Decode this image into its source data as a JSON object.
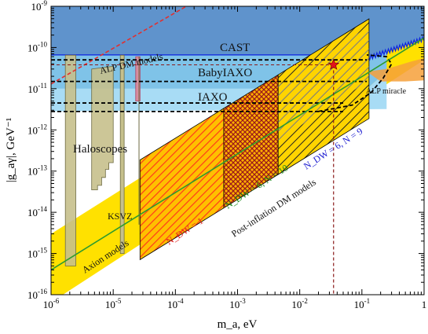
{
  "chart_data": {
    "type": "area",
    "xlabel": "m_a, eV",
    "ylabel": "|g_aγ|, GeV⁻¹",
    "xscale": "log",
    "yscale": "log",
    "xlim": [
      1e-06,
      1
    ],
    "ylim": [
      1e-16,
      1e-09
    ],
    "x_ticks": [
      {
        "value": 1e-06,
        "base": "10",
        "exp": "-6"
      },
      {
        "value": 1e-05,
        "base": "10",
        "exp": "-5"
      },
      {
        "value": 0.0001,
        "base": "10",
        "exp": "-4"
      },
      {
        "value": 0.001,
        "base": "10",
        "exp": "-3"
      },
      {
        "value": 0.01,
        "base": "10",
        "exp": "-2"
      },
      {
        "value": 0.1,
        "base": "10",
        "exp": "-1"
      },
      {
        "value": 1,
        "base": "1",
        "exp": ""
      }
    ],
    "y_ticks": [
      {
        "value": 1e-16,
        "base": "10",
        "exp": "-16"
      },
      {
        "value": 1e-15,
        "base": "10",
        "exp": "-15"
      },
      {
        "value": 1e-14,
        "base": "10",
        "exp": "-14"
      },
      {
        "value": 1e-13,
        "base": "10",
        "exp": "-13"
      },
      {
        "value": 1e-12,
        "base": "10",
        "exp": "-12"
      },
      {
        "value": 1e-11,
        "base": "10",
        "exp": "-11"
      },
      {
        "value": 1e-10,
        "base": "10",
        "exp": "-10"
      },
      {
        "value": 1e-09,
        "base": "10",
        "exp": "-9"
      }
    ],
    "regions": [
      {
        "name": "CAST",
        "mass_range": [
          1e-06,
          1
        ],
        "coupling_upper_limit": 6.6e-11,
        "color": "#5f93cc"
      },
      {
        "name": "BabyIAXO",
        "mass_range": [
          1e-06,
          0.25
        ],
        "coupling_reach": 1.5e-11,
        "color": "#7fc3e8"
      },
      {
        "name": "IAXO",
        "mass_range": [
          1e-06,
          0.25
        ],
        "coupling_reach": 4e-12,
        "color": "#a8dcf5"
      },
      {
        "name": "Haloscopes",
        "mass_range": [
          2e-06,
          2.6e-05
        ],
        "color": "#c6c08c"
      },
      {
        "name": "Axion models",
        "color": "#ffe100"
      },
      {
        "name": "N_DW = 1",
        "mass_range": [
          2.7e-05,
          0.0006
        ],
        "color": "#ff6a00"
      },
      {
        "name": "N_DW = 6, N = 10",
        "mass_range": [
          0.0006,
          0.0045
        ],
        "color": "#aa1a2a"
      },
      {
        "name": "N_DW = 6, N = 9",
        "mass_range": [
          0.0045,
          0.13
        ],
        "color": "#222222"
      }
    ],
    "lines": [
      {
        "name": "KSVZ",
        "points": [
          [
            1e-06,
            4e-16
          ],
          [
            1,
            1.7e-10
          ]
        ],
        "color": "#2e9b2e"
      },
      {
        "name": "ALP DM models",
        "points": [
          [
            1e-06,
            1.3e-11
          ],
          [
            0.00015,
            1e-09
          ]
        ],
        "color": "#e03030"
      }
    ],
    "dashed_levels": [
      1.5e-11,
      5e-11,
      4.5e-12,
      2.8e-12
    ],
    "marker": {
      "label": "star",
      "x": 0.035,
      "y": 3.8e-11
    },
    "vertical_line_x": 0.035,
    "annotations": {
      "cast": "CAST",
      "alp_dm": "ALP DM models",
      "babyiaxo": "BabyIAXO",
      "iaxo": "IAXO",
      "haloscopes": "Haloscopes",
      "alp_miracle": "ALP miracle",
      "ksvz": "KSVZ",
      "axion_models": "Axion models",
      "post_inflation": "Post-inflation DM models",
      "ndw1": "N_DW = 1",
      "ndw6n10": "N_DW = 6, N = 10",
      "ndw6n9": "N_DW = 6, N = 9"
    }
  }
}
